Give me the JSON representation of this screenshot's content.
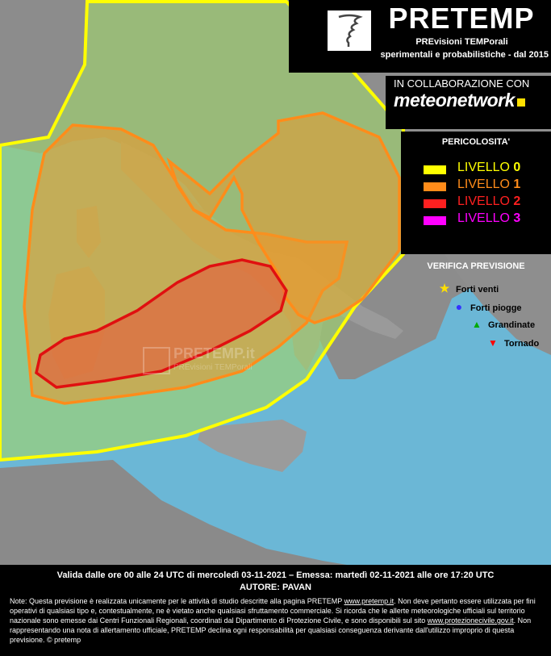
{
  "brand": {
    "title": "PRETEMP",
    "subtitle1": "PREvisioni TEMPorali",
    "subtitle2": "sperimentali e probabilistiche - dal 2015",
    "logo_icon": "tornado-icon"
  },
  "collaboration": {
    "label": "IN COLLABORAZIONE CON",
    "partner": "meteonetwork"
  },
  "legend": {
    "title": "PERICOLOSITA'",
    "levels": [
      {
        "label": "LIVELLO",
        "num": "0",
        "color": "#ffff00"
      },
      {
        "label": "LIVELLO",
        "num": "1",
        "color": "#ff8c1a"
      },
      {
        "label": "LIVELLO",
        "num": "2",
        "color": "#ff2020"
      },
      {
        "label": "LIVELLO",
        "num": "3",
        "color": "#ff00ff"
      }
    ]
  },
  "verification": {
    "title": "VERIFICA PREVISIONE",
    "items": [
      {
        "label": "Forti venti",
        "icon": "star-icon",
        "color": "#ffe000"
      },
      {
        "label": "Forti piogge",
        "icon": "circle-icon",
        "color": "#3333ff"
      },
      {
        "label": "Grandinate",
        "icon": "triangle-up-icon",
        "color": "#00aa00"
      },
      {
        "label": "Tornado",
        "icon": "triangle-down-icon",
        "color": "#ff0000"
      }
    ]
  },
  "watermark": {
    "main": "PRETEMP.it",
    "sub": "PREvisioni TEMPorali"
  },
  "footer": {
    "validity": "Valida dalle ore 00 alle 24 UTC di mercoledì 03-11-2021 – Emessa: martedì 02-11-2021 alle ore 17:20 UTC",
    "author": "AUTORE: PAVAN",
    "note_1": "Note: Questa previsione è realizzata unicamente per le attività di studio descritte alla pagina PRETEMP ",
    "note_link1": "www.pretemp.it",
    "note_2": ". Non deve pertanto essere utilizzata per fini operativi di qualsiasi tipo e, contestualmente, ne è vietato anche qualsiasi sfruttamento commerciale. Si ricorda che le allerte meteorologiche ufficiali sul territorio nazionale sono emesse dai Centri Funzionali Regionali, coordinati dal Dipartimento di Protezione Civile, e sono disponibili sul sito ",
    "note_link2": "www.protezionecivile.gov.it",
    "note_3": ". Non rappresentando una nota di allertamento ufficiale, PRETEMP declina ogni responsabilità per qualsiasi conseguenza derivante dall'utilizzo improprio di questa previsione.  © pretemp"
  },
  "colors": {
    "sea": "#6bb7d6",
    "land": "#8a8a8a",
    "level0_fill": "#b8d48a",
    "level1_fill": "#d9a85a",
    "level2_fill": "#e07a4a"
  }
}
